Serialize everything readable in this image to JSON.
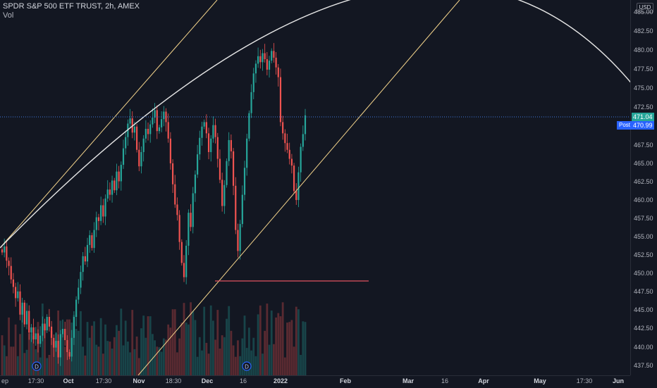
{
  "legend": {
    "symbol": "SPDR S&P 500 ETF TRUST, 2h, AMEX",
    "vol": "Vol"
  },
  "price_axis": {
    "currency": "USD",
    "ticks": [
      "485.00",
      "482.50",
      "480.00",
      "477.50",
      "475.00",
      "472.50",
      "470.00",
      "467.50",
      "465.00",
      "462.50",
      "460.00",
      "457.50",
      "455.00",
      "452.50",
      "450.00",
      "447.50",
      "445.00",
      "442.50",
      "440.00",
      "437.50"
    ],
    "last_price": "471.04",
    "post_label": "Post",
    "post_price": "470.99"
  },
  "time_axis": {
    "ticks": [
      "ep",
      "17:30",
      "Oct",
      "17:30",
      "Nov",
      "18:30",
      "Dec",
      "16",
      "2022",
      "Feb",
      "Mar",
      "16",
      "Apr",
      "May",
      "17:30",
      "Jun"
    ]
  },
  "events": [
    "D",
    "D"
  ],
  "colors": {
    "up": "#26a69a",
    "down": "#ef5350",
    "background": "#131722",
    "trendline": "#f5d58c",
    "arc": "#e6e6e6",
    "support": "#e05260",
    "last_price_line": "#3f7ae0",
    "post_badge": "#2962ff"
  },
  "chart_data": {
    "type": "candlestick",
    "ylim": [
      436.2,
      486.3
    ],
    "series": [
      {
        "values": [
          452.6,
          453.4,
          451.5,
          450.8,
          449.0,
          448.0,
          446.5,
          447.4,
          444.3,
          445.9,
          443.0,
          444.8,
          441.9,
          442.6,
          441.0,
          441.8,
          440.4,
          441.5,
          443.1,
          442.2,
          444.0,
          442.7,
          441.2,
          439.9,
          440.8,
          438.6,
          441.7,
          442.4,
          440.9,
          439.3,
          438.7,
          441.2,
          444.0,
          446.3,
          447.9,
          450.0,
          452.1,
          451.4,
          453.6,
          454.9,
          453.2,
          455.6,
          457.3,
          456.8,
          458.9,
          457.4,
          459.8,
          461.0,
          460.3,
          462.2,
          460.9,
          463.4,
          462.1,
          464.3,
          466.5,
          468.0,
          469.8,
          470.5,
          468.6,
          469.4,
          466.3,
          464.1,
          466.0,
          467.8,
          469.1,
          468.4,
          469.7,
          470.6,
          471.6,
          468.8,
          469.3,
          470.4,
          471.4,
          470.0,
          467.8,
          464.5,
          461.7,
          459.0,
          457.6,
          454.0,
          451.2,
          449.3,
          453.5,
          457.9,
          456.0,
          460.5,
          463.0,
          465.7,
          467.9,
          469.4,
          470.0,
          468.5,
          466.0,
          467.8,
          469.6,
          468.0,
          465.1,
          462.3,
          458.8,
          461.6,
          464.8,
          467.6,
          466.1,
          461.5,
          455.6,
          452.8,
          456.4,
          460.3,
          463.9,
          467.8,
          471.2,
          474.0,
          476.5,
          477.8,
          478.8,
          478.0,
          479.2,
          478.4,
          477.0,
          478.2,
          479.5,
          478.6,
          477.3,
          476.0,
          470.0,
          468.5,
          467.2,
          466.3,
          465.1,
          464.2,
          460.8,
          459.6,
          463.3,
          466.7,
          468.4,
          470.9
        ],
        "volume_rel": [
          0.41,
          0.25,
          0.08,
          0.69,
          0.23,
          0.23,
          0.58,
          0.08,
          0.43,
          0.87,
          0.13,
          0.18,
          0.44,
          0.44,
          0.4,
          0.19,
          0.62,
          0.06,
          0.91,
          0.57,
          0.05,
          0.1,
          0.48,
          0.31,
          0.44,
          0.8,
          0.64,
          0.43,
          0.23,
          0.66,
          0.66,
          0.61,
          0.73,
          0.51,
          0.48,
          0.79,
          0.23,
          0.09,
          0.62,
          0.37,
          0.56,
          0.63,
          0.26,
          0.23,
          0.68,
          0.12,
          0.58,
          0.32,
          0.31,
          0.2,
          0.38,
          0.57,
          0.48,
          0.83,
          0.25,
          0.64,
          0.31,
          0.14,
          0.81,
          0.19,
          0.39,
          0.05,
          0.52,
          0.72,
          0.37,
          0.71,
          0.71,
          0.43,
          0.33,
          0.23,
          0.22,
          0.15,
          0.36,
          0.34,
          0.58,
          0.53,
          0.82,
          0.82,
          0.14,
          0.36,
          0.61,
          0.92,
          0.61,
          0.58,
          0.93,
          0.79,
          0.65,
          0.07,
          0.38,
          0.17,
          0.86,
          0.29,
          0.12,
          0.88,
          0.64,
          0.34,
          0.81,
          0.2,
          0.41,
          0.38,
          0.67,
          0.87,
          0.48,
          0.25,
          0.07,
          0.33,
          0.08,
          0.36,
          0.72,
          0.21,
          0.53,
          0.17,
          0.37,
          0.08,
          0.74,
          0.88,
          0.12,
          0.48,
          0.91,
          0.26,
          0.8,
          0.27,
          0.69,
          0.76,
          0.71,
          0.93,
          0.06,
          0.61,
          0.62,
          0.65,
          0.23,
          0.86,
          0.82,
          0.1,
          0.63,
          0.62
        ]
      }
    ]
  }
}
